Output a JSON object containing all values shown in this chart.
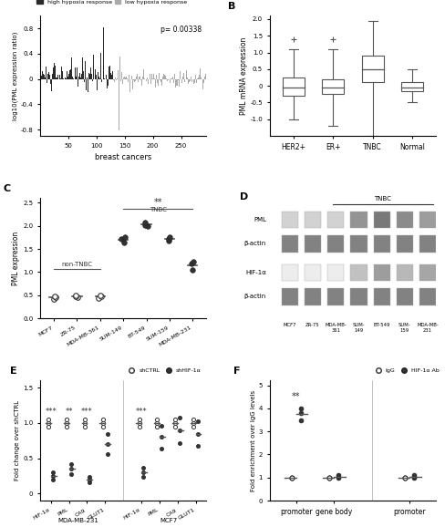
{
  "panel_A": {
    "n_high": 130,
    "n_low": 165,
    "high_color": "#3a3a3a",
    "low_color": "#b0b0b0",
    "ylabel": "log10(PML expression ratio)",
    "xlabel": "breast cancers",
    "pvalue": "p= 0.00338",
    "yticks": [
      -0.8,
      -0.4,
      0,
      0.4,
      0.8
    ],
    "xticks": [
      50,
      100,
      150,
      200,
      250
    ]
  },
  "panel_B": {
    "categories": [
      "HER2+",
      "ER+",
      "TNBC",
      "Normal"
    ],
    "ylabel": "PML mRNA expression",
    "medians": [
      -0.05,
      -0.05,
      0.5,
      -0.05
    ],
    "q1": [
      -0.3,
      -0.25,
      0.1,
      -0.15
    ],
    "q3": [
      0.25,
      0.2,
      0.9,
      0.1
    ],
    "whisker_low": [
      -1.0,
      -1.2,
      -1.5,
      -0.5
    ],
    "whisker_high": [
      1.1,
      1.1,
      1.95,
      0.5
    ],
    "ylim": [
      -1.5,
      2.1
    ],
    "yticks": [
      -1.0,
      -0.5,
      0,
      0.5,
      1.0,
      1.5,
      2.0
    ]
  },
  "panel_C": {
    "categories": [
      "MCF7",
      "ZR-75",
      "MDA-MB-361",
      "SUM-149",
      "BT-549",
      "SUM-159",
      "MDA-MB-231"
    ],
    "ylabel": "PML expression",
    "data_points": [
      [
        0.42,
        0.45,
        0.48
      ],
      [
        0.45,
        0.48,
        0.5
      ],
      [
        0.44,
        0.47,
        0.5
      ],
      [
        1.65,
        1.72,
        1.75
      ],
      [
        2.0,
        2.02,
        2.08
      ],
      [
        1.68,
        1.72,
        1.76
      ],
      [
        1.05,
        1.18,
        1.22
      ]
    ],
    "open_symbols": [
      true,
      true,
      true,
      false,
      false,
      false,
      false
    ],
    "ylim": [
      0.0,
      2.6
    ],
    "yticks": [
      0.0,
      0.5,
      1.0,
      1.5,
      2.0,
      2.5
    ]
  },
  "panel_D": {
    "labels": [
      "PML",
      "β-actin",
      "HIF-1α",
      "β-actin"
    ],
    "col_labels": [
      "MCF7",
      "ZR-75",
      "MDA-MB-361",
      "SUM-149",
      "BT-549",
      "SUM-159",
      "MDA-MB-231"
    ]
  },
  "panel_E": {
    "groups": [
      "HIF-1α",
      "PML",
      "CA9",
      "GLUT1"
    ],
    "ylabel": "Fold change over shCTRL",
    "mda_label": "MDA-MB-231",
    "mcf_label": "MCF7",
    "sig_mda": [
      "***",
      "**",
      "***",
      ""
    ],
    "sig_mcf": [
      "***",
      "",
      "",
      ""
    ],
    "ylim": [
      0,
      1.6
    ]
  },
  "panel_F": {
    "categories": [
      "promoter",
      "gene body",
      "promoter"
    ],
    "ylabel": "Fold enrichment over IgG levels",
    "IgG_label": "IgG",
    "HIF_label": "HIF-1α Ab",
    "ylim": [
      0,
      5
    ],
    "significance": "**"
  },
  "colors": {
    "dark": "#2a2a2a",
    "light_gray": "#aaaaaa",
    "mid_gray": "#666666",
    "text_color": "#333333"
  }
}
